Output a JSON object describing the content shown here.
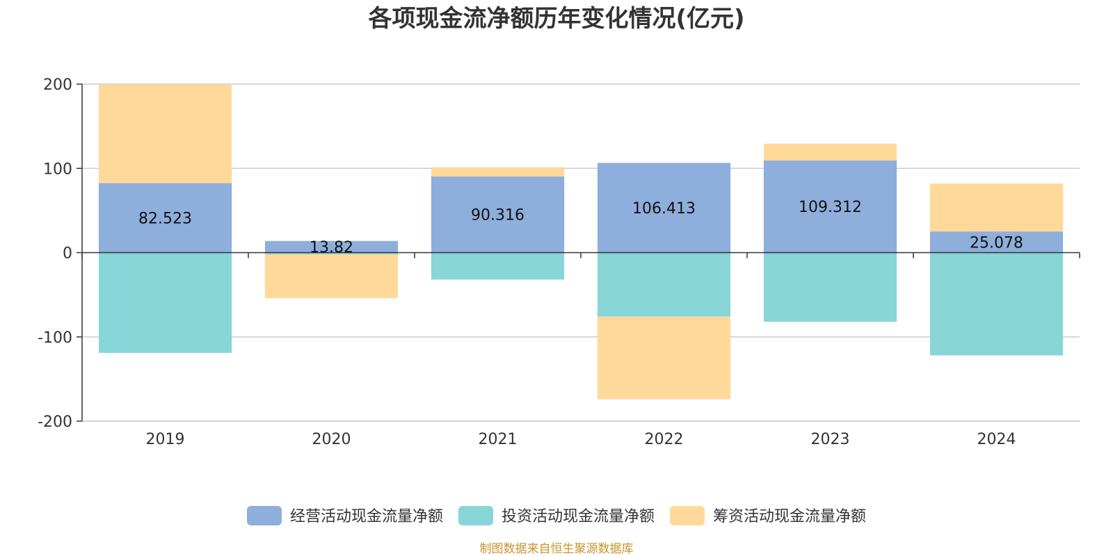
{
  "chart_data": {
    "type": "bar",
    "stacked": true,
    "title": "各项现金流净额历年变化情况(亿元)",
    "categories": [
      "2019",
      "2020",
      "2021",
      "2022",
      "2023",
      "2024"
    ],
    "ylim": [
      -200,
      200
    ],
    "yticks": [
      200,
      100,
      0,
      -100,
      -200
    ],
    "grid": true,
    "legend_position": "bottom",
    "series": [
      {
        "name": "经营活动现金流量净额",
        "color": "#8eaedb",
        "values": [
          82.523,
          13.82,
          90.316,
          106.413,
          109.312,
          25.078
        ],
        "labels": [
          "82.523",
          "13.82",
          "90.316",
          "106.413",
          "109.312",
          "25.078"
        ]
      },
      {
        "name": "投资活动现金流量净额",
        "color": "#88d6d8",
        "values": [
          -119,
          -2,
          -32,
          -76,
          -82,
          -122
        ]
      },
      {
        "name": "筹资活动现金流量净额",
        "color": "#ffd99a",
        "values": [
          117,
          -52,
          11,
          -98,
          20,
          57
        ]
      }
    ],
    "source": "制图数据来自恒生聚源数据库"
  }
}
